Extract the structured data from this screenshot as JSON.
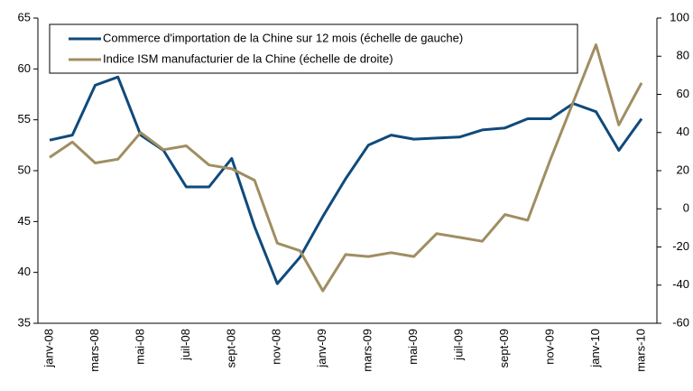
{
  "chart_data": {
    "type": "line",
    "categories": [
      "janv-08",
      null,
      "mars-08",
      null,
      "mai-08",
      null,
      "juil-08",
      null,
      "sept-08",
      null,
      "nov-08",
      null,
      "janv-09",
      null,
      "mars-09",
      null,
      "mai-09",
      null,
      "juil-09",
      null,
      "sept-09",
      null,
      "nov-09",
      null,
      "janv-10",
      null,
      "mars-10"
    ],
    "series": [
      {
        "name": "Commerce d'importation de la Chine sur 12 mois (échelle de gauche)",
        "color": "#0f4a7c",
        "values": [
          53.0,
          53.5,
          58.4,
          59.2,
          53.5,
          52.0,
          48.4,
          48.4,
          51.2,
          44.5,
          38.9,
          41.5,
          45.5,
          49.2,
          52.5,
          53.5,
          53.1,
          53.2,
          53.3,
          54.0,
          54.2,
          55.1,
          55.1,
          56.6,
          55.8,
          52.0,
          55.1
        ]
      },
      {
        "name": "Indice ISM manufacturier de la Chine (échelle de droite)",
        "color": "#a08e62",
        "axis": "y2",
        "values": [
          27,
          35,
          24,
          26,
          40,
          31,
          33,
          23,
          21,
          15,
          -18,
          -22,
          -43,
          -24,
          -25,
          -23,
          -25,
          -13,
          -15,
          -17,
          -3,
          -6,
          26,
          56,
          86,
          44,
          66
        ]
      }
    ],
    "ylim": [
      35,
      65
    ],
    "yticks": [
      35,
      40,
      45,
      50,
      55,
      60,
      65
    ],
    "y2lim": [
      -60,
      100
    ],
    "y2ticks": [
      -60,
      -40,
      -20,
      0,
      20,
      40,
      60,
      80,
      100
    ],
    "legend": "top-left"
  }
}
